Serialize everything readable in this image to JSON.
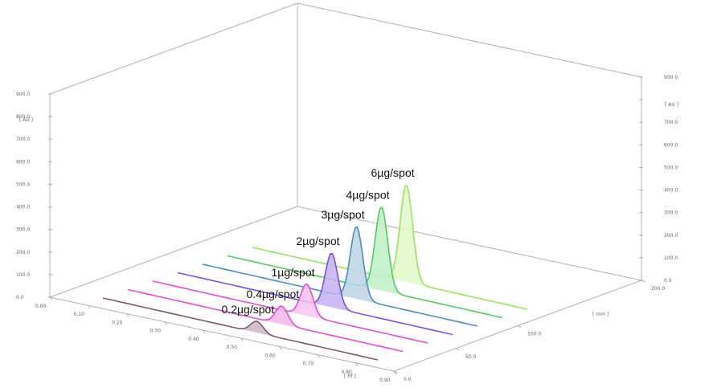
{
  "chart_data": {
    "type": "area",
    "projection": "3d-stacked-densitograms",
    "x_axis": {
      "label": "[ Rf ]",
      "range": [
        0.0,
        0.9
      ],
      "ticks": [
        "0.00",
        "0.10",
        "0.20",
        "0.30",
        "0.40",
        "0.50",
        "0.60",
        "0.70",
        "0.80",
        "0.90"
      ]
    },
    "y_axis": {
      "label": "[ AU ]",
      "range": [
        0.0,
        900.0
      ],
      "ticks": [
        "0.0",
        "100.0",
        "200.0",
        "300.0",
        "400.0",
        "500.0",
        "600.0",
        "700.0",
        "800.0",
        "900.0"
      ]
    },
    "z_axis": {
      "label": "[ mm ]",
      "range": [
        0.0,
        200.0
      ],
      "ticks": [
        "0.0",
        "50.0",
        "100.0",
        "200.0"
      ]
    },
    "series": [
      {
        "name": "0.2µg/spot",
        "track": 0,
        "peak_rf": 0.55,
        "peak_au": 50,
        "color": "#7a5a6e",
        "fill": "#c9b7c3"
      },
      {
        "name": "0.4µg/spot",
        "track": 1,
        "peak_rf": 0.55,
        "peak_au": 80,
        "color": "#e04fd0",
        "fill": "#f2b6ec"
      },
      {
        "name": "1µg/spot",
        "track": 2,
        "peak_rf": 0.55,
        "peak_au": 140,
        "color": "#e04fd0",
        "fill": "#f7c2f0"
      },
      {
        "name": "2µg/spot",
        "track": 3,
        "peak_rf": 0.55,
        "peak_au": 240,
        "color": "#7a52d8",
        "fill": "#c5b2f2"
      },
      {
        "name": "3µg/spot",
        "track": 4,
        "peak_rf": 0.55,
        "peak_au": 320,
        "color": "#4a8fb8",
        "fill": "#bcd4e6"
      },
      {
        "name": "4µg/spot",
        "track": 5,
        "peak_rf": 0.55,
        "peak_au": 370,
        "color": "#58c768",
        "fill": "#bfeec4"
      },
      {
        "name": "6µg/spot",
        "track": 6,
        "peak_rf": 0.55,
        "peak_au": 430,
        "color": "#98e462",
        "fill": "#e1f9c9"
      }
    ]
  }
}
